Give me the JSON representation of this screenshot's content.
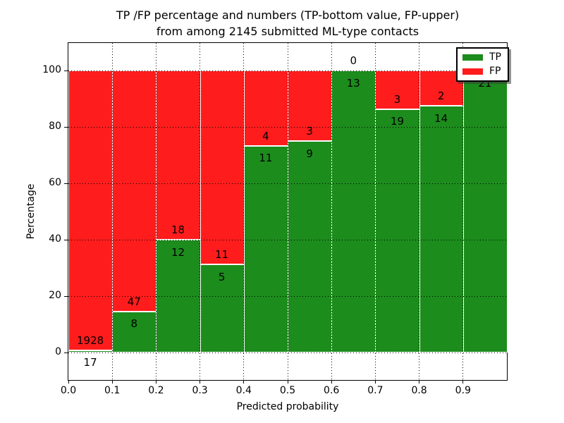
{
  "title": {
    "line1": "TP /FP percentage and numbers (TP-bottom value, FP-upper)",
    "line2": "from among 2145 submitted ML-type contacts"
  },
  "axes": {
    "xlabel": "Predicted probability",
    "ylabel": "Percentage",
    "x_tick_labels": [
      "0.0",
      "0.1",
      "0.2",
      "0.3",
      "0.4",
      "0.5",
      "0.6",
      "0.7",
      "0.8",
      "0.9"
    ],
    "y_tick_labels": [
      "0",
      "20",
      "40",
      "60",
      "80",
      "100"
    ],
    "y_tick_values": [
      0,
      20,
      40,
      60,
      80,
      100
    ]
  },
  "legend": {
    "items": [
      {
        "label": "TP",
        "color": "#1c8c1c"
      },
      {
        "label": "FP",
        "color": "#ff1c1c"
      }
    ]
  },
  "chart_data": {
    "type": "bar",
    "stacked": true,
    "percent_normalized": true,
    "title": "TP /FP percentage and numbers (TP-bottom value, FP-upper) from among 2145 submitted ML-type contacts",
    "xlabel": "Predicted probability",
    "ylabel": "Percentage",
    "total_contacts": 2145,
    "categories": [
      "0.0-0.1",
      "0.1-0.2",
      "0.2-0.3",
      "0.3-0.4",
      "0.4-0.5",
      "0.5-0.6",
      "0.6-0.7",
      "0.7-0.8",
      "0.8-0.9",
      "0.9-1.0"
    ],
    "series": [
      {
        "name": "TP",
        "color": "#1c8c1c",
        "counts": [
          17,
          8,
          12,
          5,
          11,
          9,
          13,
          19,
          14,
          21
        ]
      },
      {
        "name": "FP",
        "color": "#ff1c1c",
        "counts": [
          1928,
          47,
          18,
          11,
          4,
          3,
          0,
          3,
          2,
          0
        ]
      }
    ],
    "tp_percent": [
      0.87,
      14.55,
      40.0,
      31.25,
      73.33,
      75.0,
      100.0,
      86.36,
      87.5,
      100.0
    ],
    "ylim": [
      -10.25,
      109.75
    ],
    "xlim": [
      0.0,
      1.0
    ],
    "grid": "dotted",
    "legend_position": "upper right",
    "bar_edge_color": "#ffffff",
    "background_color": "#ffffff"
  }
}
